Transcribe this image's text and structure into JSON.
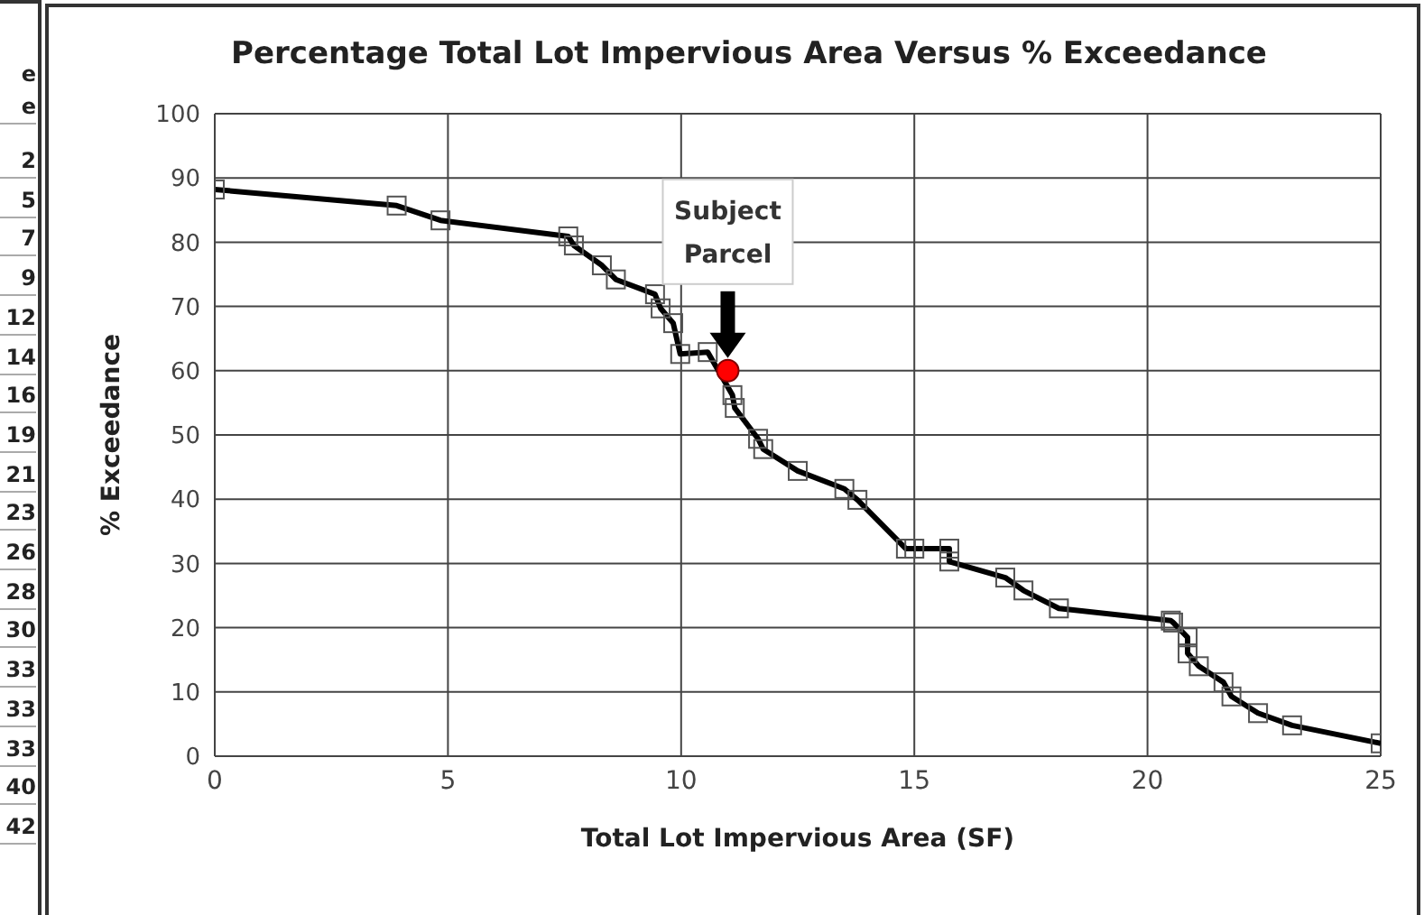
{
  "chart_data": {
    "type": "line",
    "title": "Percentage Total Lot Impervious Area Versus % Exceedance",
    "xlabel": "Total Lot Impervious Area (SF)",
    "ylabel": "% Exceedance",
    "series": [
      {
        "color": "#000000",
        "marker": "square",
        "x": [
          0,
          3.9,
          4.84,
          7.58,
          7.7,
          8.3,
          8.6,
          9.44,
          9.56,
          9.83,
          9.98,
          10.57,
          11.1,
          11.15,
          11.65,
          11.76,
          12.5,
          13.5,
          13.78,
          14.82,
          15.0,
          15.75,
          15.75,
          16.95,
          17.34,
          18.1,
          20.5,
          20.55,
          20.86,
          20.86,
          21.1,
          21.63,
          21.8,
          22.37,
          23.1,
          25
        ],
        "values": [
          88.2,
          85.7,
          83.4,
          80.9,
          79.5,
          76.4,
          74.2,
          71.9,
          69.7,
          67.4,
          62.6,
          62.9,
          56.2,
          54.2,
          49.4,
          47.8,
          44.4,
          41.6,
          39.9,
          32.3,
          32.3,
          32.3,
          30.3,
          27.8,
          25.8,
          23.0,
          21.1,
          20.8,
          18.5,
          16.0,
          14.0,
          11.5,
          9.3,
          6.7,
          4.8,
          2.0
        ]
      },
      {
        "type": "scatter",
        "color": "#ff0000",
        "marker": "circle",
        "x": [
          11
        ],
        "values": [
          60
        ]
      }
    ],
    "xlim": [
      0,
      25
    ],
    "xticks": [
      0,
      5,
      10,
      15,
      20,
      25
    ],
    "ylim": [
      0,
      100
    ],
    "yticks": [
      0,
      10,
      20,
      30,
      40,
      50,
      60,
      70,
      80,
      90,
      100
    ],
    "grid": true,
    "annotations": [
      "Subject Parcel",
      "e",
      "e",
      "2",
      "5",
      "7",
      "9",
      "12",
      "14",
      "16",
      "19",
      "21",
      "23",
      "26",
      "28",
      "30",
      "33",
      "33",
      "33",
      "40",
      "42"
    ]
  }
}
